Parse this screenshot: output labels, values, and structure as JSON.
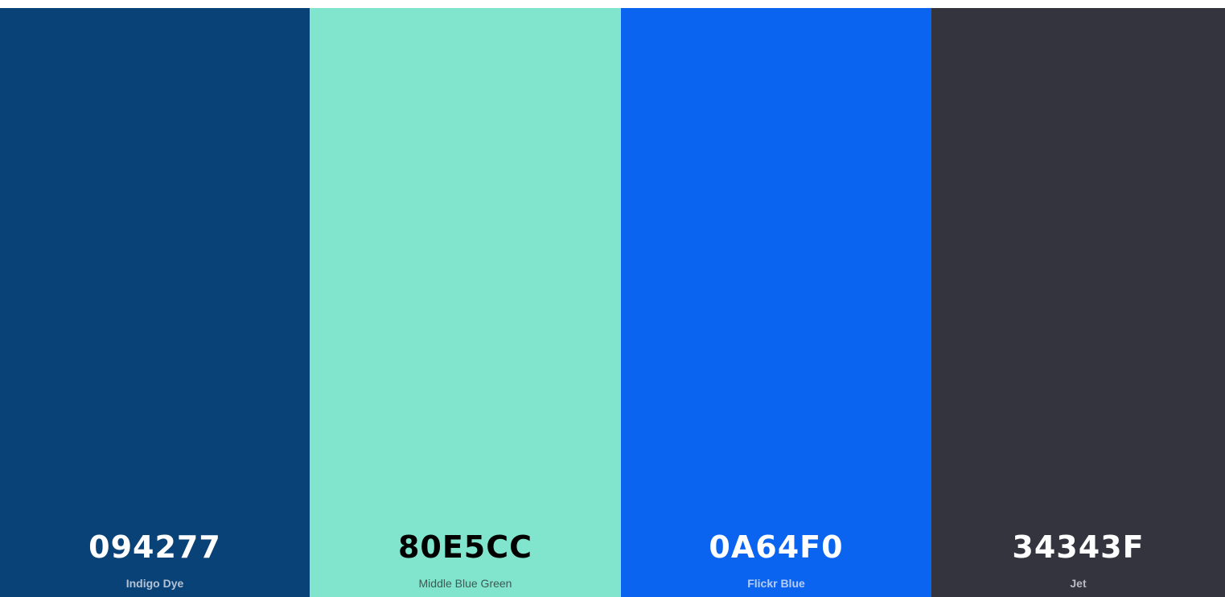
{
  "swatches": [
    {
      "hex": "094277",
      "name": "Indigo Dye",
      "color": "#094277",
      "text_color": "#ffffff",
      "name_color": "#b4c3d4",
      "name_weight": "bold"
    },
    {
      "hex": "80E5CC",
      "name": "Middle Blue Green",
      "color": "#80E5CC",
      "text_color": "#000000",
      "name_color": "#3c5a54",
      "name_weight": "normal"
    },
    {
      "hex": "0A64F0",
      "name": "Flickr Blue",
      "color": "#0A64F0",
      "text_color": "#ffffff",
      "name_color": "#b6cdf8",
      "name_weight": "bold"
    },
    {
      "hex": "34343F",
      "name": "Jet",
      "color": "#34343F",
      "text_color": "#ffffff",
      "name_color": "#b9b9c0",
      "name_weight": "bold"
    }
  ]
}
